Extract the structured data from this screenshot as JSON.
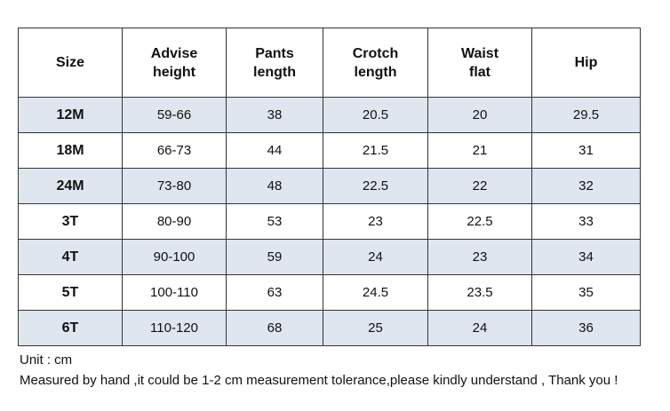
{
  "table": {
    "header": [
      [
        "Size"
      ],
      [
        "Advise",
        "height"
      ],
      [
        "Pants",
        "length"
      ],
      [
        "Crotch",
        "length"
      ],
      [
        "Waist",
        "flat"
      ],
      [
        "Hip"
      ]
    ],
    "rows": [
      [
        "12M",
        "59-66",
        "38",
        "20.5",
        "20",
        "29.5"
      ],
      [
        "18M",
        "66-73",
        "44",
        "21.5",
        "21",
        "31"
      ],
      [
        "24M",
        "73-80",
        "48",
        "22.5",
        "22",
        "32"
      ],
      [
        "3T",
        "80-90",
        "53",
        "23",
        "22.5",
        "33"
      ],
      [
        "4T",
        "90-100",
        "59",
        "24",
        "23",
        "34"
      ],
      [
        "5T",
        "100-110",
        "63",
        "24.5",
        "23.5",
        "35"
      ],
      [
        "6T",
        "110-120",
        "68",
        "25",
        "24",
        "36"
      ]
    ]
  },
  "notes": [
    "Unit : cm",
    "Measured by hand ,it could be 1-2 cm measurement tolerance,please kindly understand , Thank you !"
  ]
}
